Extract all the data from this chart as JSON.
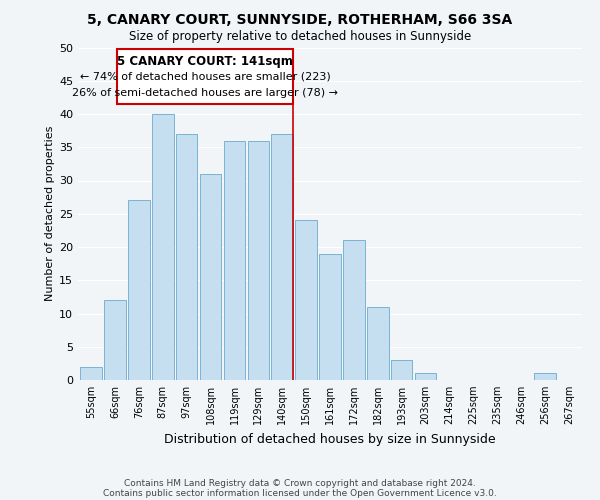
{
  "title": "5, CANARY COURT, SUNNYSIDE, ROTHERHAM, S66 3SA",
  "subtitle": "Size of property relative to detached houses in Sunnyside",
  "xlabel": "Distribution of detached houses by size in Sunnyside",
  "ylabel": "Number of detached properties",
  "bin_labels": [
    "55sqm",
    "66sqm",
    "76sqm",
    "87sqm",
    "97sqm",
    "108sqm",
    "119sqm",
    "129sqm",
    "140sqm",
    "150sqm",
    "161sqm",
    "172sqm",
    "182sqm",
    "193sqm",
    "203sqm",
    "214sqm",
    "225sqm",
    "235sqm",
    "246sqm",
    "256sqm",
    "267sqm"
  ],
  "bar_values": [
    2,
    12,
    27,
    40,
    37,
    31,
    36,
    36,
    37,
    24,
    19,
    21,
    11,
    3,
    1,
    0,
    0,
    0,
    0,
    1,
    0
  ],
  "bar_color": "#c5dff0",
  "bar_edge_color": "#7ab3d4",
  "vline_color": "#cc0000",
  "annotation_title": "5 CANARY COURT: 141sqm",
  "annotation_line1": "← 74% of detached houses are smaller (223)",
  "annotation_line2": "26% of semi-detached houses are larger (78) →",
  "annotation_box_color": "#ffffff",
  "annotation_box_edge": "#cc0000",
  "ylim": [
    0,
    50
  ],
  "yticks": [
    0,
    5,
    10,
    15,
    20,
    25,
    30,
    35,
    40,
    45,
    50
  ],
  "footer1": "Contains HM Land Registry data © Crown copyright and database right 2024.",
  "footer2": "Contains public sector information licensed under the Open Government Licence v3.0.",
  "background_color": "#f2f5f8"
}
